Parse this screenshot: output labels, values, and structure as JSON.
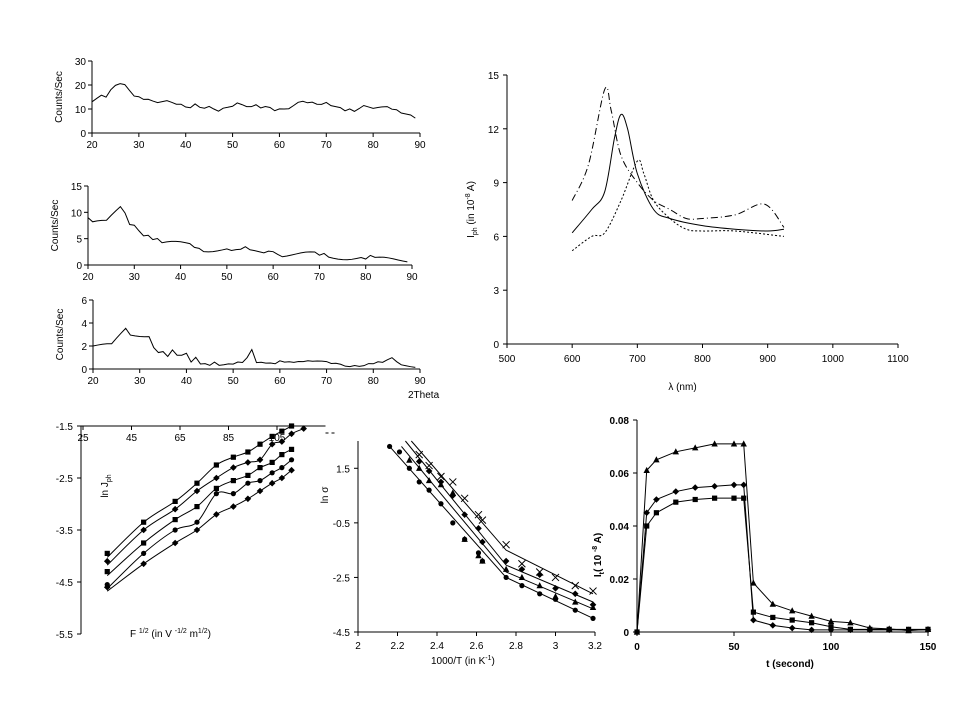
{
  "chart_data": [
    {
      "id": "xrd1",
      "type": "line",
      "ylabel": "Counts/Sec",
      "xlabel": "",
      "xlim": [
        20,
        90
      ],
      "ylim": [
        0,
        30
      ],
      "xticks": [
        "20",
        "30",
        "40",
        "50",
        "60",
        "70",
        "80",
        "90"
      ],
      "yticks": [
        "0",
        "10",
        "20",
        "30"
      ],
      "x_start": 20,
      "x_step": 1,
      "values": [
        13,
        14,
        15,
        14,
        17,
        19,
        20,
        20,
        18,
        16,
        16,
        15,
        15,
        14,
        13,
        13,
        13,
        12,
        11,
        11,
        10,
        10,
        12,
        11,
        11,
        12,
        11,
        10,
        11,
        11,
        11,
        12,
        11,
        10,
        10,
        11,
        10,
        11,
        11,
        10,
        11,
        11,
        11,
        12,
        13,
        13,
        12,
        12,
        11,
        11,
        12,
        11,
        11,
        11,
        10,
        11,
        10,
        11,
        12,
        11,
        10,
        10,
        10,
        10,
        9,
        9,
        8,
        8,
        8,
        7
      ]
    },
    {
      "id": "xrd2",
      "type": "line",
      "ylabel": "Counts/Sec",
      "xlabel": "",
      "xlim": [
        20,
        90
      ],
      "ylim": [
        0,
        15
      ],
      "xticks": [
        "20",
        "30",
        "40",
        "50",
        "60",
        "70",
        "80",
        "90"
      ],
      "yticks": [
        "0",
        "5",
        "10",
        "15"
      ],
      "x_start": 20,
      "x_step": 1,
      "values": [
        9,
        8,
        8,
        8,
        8,
        9,
        10,
        11,
        10,
        8,
        8,
        7,
        6,
        6,
        5,
        5,
        4,
        4,
        4,
        4,
        4,
        4,
        4,
        3.5,
        3.5,
        3,
        3,
        3,
        3,
        3,
        3,
        2.5,
        2.5,
        2.5,
        3,
        2.5,
        2.5,
        2.5,
        2.5,
        3,
        3,
        2.5,
        2,
        2,
        2,
        2,
        2,
        2,
        2,
        2,
        1.5,
        2,
        1.5,
        1.5,
        1.5,
        1.5,
        1.5,
        1.5,
        1.5,
        1.5,
        1,
        1.5,
        1,
        1,
        1,
        1,
        1,
        1,
        1,
        1
      ]
    },
    {
      "id": "xrd3",
      "type": "line",
      "ylabel": "Counts/Sec",
      "xlabel": "2Theta",
      "xlim": [
        20,
        90
      ],
      "ylim": [
        0,
        6
      ],
      "xticks": [
        "20",
        "30",
        "40",
        "50",
        "60",
        "70",
        "80",
        "90"
      ],
      "yticks": [
        "0",
        "2",
        "4",
        "6"
      ],
      "x_start": 20,
      "x_step": 1,
      "values": [
        2,
        2,
        2,
        2,
        2,
        2.5,
        3,
        3.5,
        3,
        3,
        3,
        3,
        3,
        2,
        1.5,
        1.5,
        1,
        1.5,
        1,
        1,
        1.2,
        0.5,
        1,
        0.5,
        0.6,
        0.5,
        0.8,
        0.5,
        0.5,
        0.5,
        0.4,
        0.5,
        0.4,
        0.8,
        1.5,
        0.4,
        0.5,
        0.5,
        0.6,
        0.6,
        0.9,
        0.8,
        0.8,
        0.7,
        0.7,
        0.6,
        0.6,
        0.5,
        0.5,
        0.5,
        0.5,
        0.4,
        0.5,
        0.5,
        0.4,
        0.4,
        0.5,
        0.4,
        0.4,
        0.5,
        0.4,
        0.5,
        0.4,
        0.6,
        0.8,
        0.5,
        0.3,
        0.3,
        0.3,
        0.3
      ]
    },
    {
      "id": "spectral",
      "type": "line",
      "ylabel_main": "I",
      "ylabel_sub": "ph",
      "ylabel_rest": "  (in 10",
      "ylabel_exp": "-8",
      "ylabel_end": " A)",
      "xlabel": "λ  (nm)",
      "xlim": [
        500,
        1100
      ],
      "ylim": [
        0,
        15
      ],
      "xticks": [
        "500",
        "600",
        "700",
        "800",
        "900",
        "1000",
        "1100"
      ],
      "yticks": [
        "0",
        "3",
        "6",
        "9",
        "12",
        "15"
      ],
      "series": [
        {
          "name": "dash-dot",
          "style": "dashdot",
          "x": [
            600,
            625,
            650,
            660,
            675,
            700,
            725,
            750,
            775,
            800,
            850,
            895,
            925
          ],
          "y": [
            8,
            10,
            14.2,
            13,
            10.5,
            9,
            8,
            7.5,
            7,
            7,
            7.2,
            7.8,
            6.5
          ]
        },
        {
          "name": "solid",
          "style": "solid",
          "x": [
            600,
            630,
            650,
            665,
            675,
            685,
            700,
            725,
            750,
            800,
            850,
            900,
            925
          ],
          "y": [
            6.2,
            7.5,
            8.5,
            11.5,
            12.8,
            12,
            9.5,
            7.5,
            7,
            6.6,
            6.4,
            6.3,
            6.4
          ]
        },
        {
          "name": "dotted",
          "style": "dotted",
          "x": [
            600,
            630,
            650,
            675,
            700,
            710,
            725,
            750,
            775,
            800,
            850,
            925
          ],
          "y": [
            5.2,
            6,
            6.2,
            8,
            10.2,
            9.5,
            8,
            7,
            6.4,
            6.3,
            6.3,
            6
          ]
        }
      ]
    },
    {
      "id": "jph",
      "type": "scatter",
      "ylabel_main": "ln J",
      "ylabel_sub": "ph",
      "xlabel_main": "F ",
      "xlabel_exp1": "1/2",
      "xlabel_mid": " (in V ",
      "xlabel_exp2": "-1/2",
      "xlabel_mid2": " m",
      "xlabel_exp3": "1/2",
      "xlabel_end": ")",
      "xlim": [
        25,
        125
      ],
      "ylim": [
        -5.5,
        -1.5
      ],
      "xticks": [
        "25",
        "45",
        "65",
        "85",
        "105"
      ],
      "yticks": [
        "-1.5",
        "-2.5",
        "-3.5",
        "-4.5",
        "-5.5"
      ],
      "series": [
        {
          "marker": "square",
          "x": [
            35,
            50,
            63,
            72,
            80,
            87,
            93,
            98,
            103,
            107,
            111
          ],
          "y": [
            -3.95,
            -3.35,
            -2.95,
            -2.6,
            -2.25,
            -2.1,
            -2.0,
            -1.85,
            -1.7,
            -1.6,
            -1.5
          ]
        },
        {
          "marker": "diamond",
          "x": [
            35,
            50,
            63,
            72,
            80,
            87,
            93,
            98,
            103,
            107,
            111,
            116
          ],
          "y": [
            -4.1,
            -3.5,
            -3.1,
            -2.75,
            -2.5,
            -2.3,
            -2.2,
            -2.15,
            -1.85,
            -1.8,
            -1.65,
            -1.55
          ]
        },
        {
          "marker": "square",
          "x": [
            35,
            50,
            63,
            72,
            80,
            87,
            93,
            98,
            103,
            107,
            111
          ],
          "y": [
            -4.3,
            -3.75,
            -3.3,
            -3.05,
            -2.7,
            -2.55,
            -2.45,
            -2.3,
            -2.2,
            -2.05,
            -1.95
          ]
        },
        {
          "marker": "circle",
          "x": [
            35,
            50,
            63,
            72,
            80,
            87,
            93,
            98,
            103,
            107,
            111
          ],
          "y": [
            -4.55,
            -3.95,
            -3.5,
            -3.35,
            -2.8,
            -2.8,
            -2.6,
            -2.55,
            -2.4,
            -2.3,
            -2.15
          ]
        },
        {
          "marker": "diamond",
          "x": [
            35,
            50,
            63,
            72,
            80,
            87,
            93,
            98,
            103,
            107,
            111
          ],
          "y": [
            -4.6,
            -4.15,
            -3.75,
            -3.5,
            -3.2,
            -3.05,
            -2.9,
            -2.75,
            -2.6,
            -2.5,
            -2.35
          ]
        }
      ]
    },
    {
      "id": "sigma",
      "type": "scatter",
      "ylabel": "ln σ",
      "xlabel_main": "1000/T (in K",
      "xlabel_exp": "-1",
      "xlabel_end": ")",
      "xlim": [
        2,
        3.2
      ],
      "ylim": [
        -4.5,
        2.5
      ],
      "xticks": [
        "2",
        "2.2",
        "2.4",
        "2.6",
        "2.8",
        "3",
        "3.2"
      ],
      "yticks": [
        "1.5",
        "-0.5",
        "-2.5",
        "-4.5"
      ],
      "ytick_values": [
        1.5,
        -0.5,
        -2.5,
        -4.5
      ],
      "series": [
        {
          "marker": "circle",
          "x": [
            2.16,
            2.21,
            2.26,
            2.31,
            2.36,
            2.42,
            2.48,
            2.54,
            2.61,
            2.63,
            2.75,
            2.83,
            2.92,
            3.0,
            3.1,
            3.19
          ],
          "y": [
            2.3,
            2.1,
            1.5,
            1.0,
            0.7,
            0.2,
            -0.5,
            -1.1,
            -1.6,
            -1.9,
            -2.5,
            -2.8,
            -3.1,
            -3.3,
            -3.7,
            -4.0
          ],
          "fit_x": [
            2.16,
            2.75,
            3.19
          ],
          "fit_y": [
            2.3,
            -2.5,
            -4.0
          ]
        },
        {
          "marker": "triangle",
          "x": [
            2.26,
            2.31,
            2.36,
            2.42,
            2.48,
            2.54,
            2.61,
            2.63,
            2.75,
            2.83,
            2.92,
            3.0,
            3.1,
            3.19
          ],
          "y": [
            1.8,
            1.5,
            1.05,
            0.9,
            0.6,
            -1.1,
            -1.7,
            -1.9,
            -2.2,
            -2.5,
            -2.8,
            -3.2,
            -3.4,
            -3.6
          ],
          "fit_x": [
            2.22,
            2.75,
            3.19
          ],
          "fit_y": [
            2.3,
            -2.3,
            -3.65
          ]
        },
        {
          "marker": "diamond",
          "x": [
            2.31,
            2.36,
            2.42,
            2.48,
            2.54,
            2.61,
            2.63,
            2.75,
            2.83,
            2.92,
            3.0,
            3.1,
            3.19
          ],
          "y": [
            1.75,
            1.4,
            1.0,
            0.5,
            -0.2,
            -0.7,
            -1.2,
            -1.9,
            -2.2,
            -2.4,
            -2.9,
            -3.1,
            -3.5
          ],
          "fit_x": [
            2.24,
            2.75,
            3.19
          ],
          "fit_y": [
            2.5,
            -2.05,
            -3.4
          ]
        },
        {
          "marker": "cross",
          "x": [
            2.31,
            2.36,
            2.42,
            2.48,
            2.54,
            2.61,
            2.63,
            2.75,
            2.83,
            2.92,
            3.0,
            3.1,
            3.19
          ],
          "y": [
            2.0,
            1.6,
            1.2,
            1.0,
            0.4,
            -0.2,
            -0.4,
            -1.3,
            -2.0,
            -2.3,
            -2.5,
            -2.8,
            -3.0
          ],
          "fit_x": [
            2.27,
            2.75,
            3.19
          ],
          "fit_y": [
            2.5,
            -1.5,
            -3.1
          ]
        }
      ]
    },
    {
      "id": "transient",
      "type": "line",
      "ylabel_main": "I",
      "ylabel_sub": "t",
      "ylabel_rest": "( 10 ",
      "ylabel_exp": "-8",
      "ylabel_end": " A)",
      "xlabel": "t (second)",
      "xlim": [
        0,
        150
      ],
      "ylim": [
        0,
        0.08
      ],
      "xticks": [
        "0",
        "50",
        "100",
        "150"
      ],
      "yticks": [
        "0",
        "0.02",
        "0.04",
        "0.06",
        "0.08"
      ],
      "x": [
        0,
        5,
        10,
        20,
        30,
        40,
        50,
        55,
        60,
        70,
        80,
        90,
        100,
        110,
        120,
        130,
        140,
        150
      ],
      "series": [
        {
          "marker": "triangle",
          "values": [
            0,
            0.061,
            0.065,
            0.068,
            0.0695,
            0.071,
            0.071,
            0.071,
            0.0185,
            0.0105,
            0.008,
            0.006,
            0.004,
            0.0035,
            0.0015,
            0.0012,
            0.0005,
            0.001
          ]
        },
        {
          "marker": "diamond",
          "values": [
            0,
            0.045,
            0.05,
            0.053,
            0.0545,
            0.055,
            0.0555,
            0.0555,
            0.0045,
            0.0025,
            0.0015,
            0.0008,
            0.0008,
            0.0008,
            0.0008,
            0.0008,
            0.0008,
            0.0008
          ]
        },
        {
          "marker": "square",
          "values": [
            0,
            0.04,
            0.045,
            0.049,
            0.05,
            0.0505,
            0.0505,
            0.0505,
            0.0075,
            0.0055,
            0.0045,
            0.0035,
            0.002,
            0.001,
            0.001,
            0.001,
            0.001,
            0.001
          ]
        }
      ]
    }
  ]
}
